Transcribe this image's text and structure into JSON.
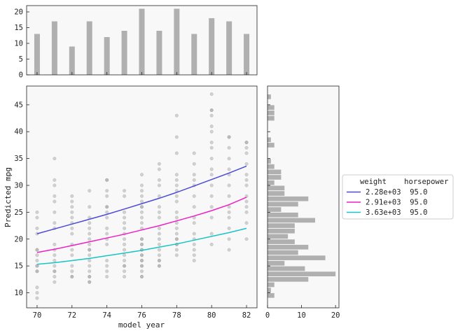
{
  "chart_data": [
    {
      "type": "bar",
      "x": [
        70,
        71,
        72,
        73,
        74,
        75,
        76,
        77,
        78,
        79,
        80,
        81,
        82
      ],
      "values": [
        13,
        17,
        9,
        17,
        12,
        14,
        21,
        14,
        21,
        13,
        18,
        17,
        13
      ],
      "xlim": [
        69.4,
        82.6
      ],
      "ylim": [
        0,
        22
      ],
      "yticks": [
        0,
        5,
        10,
        15,
        20
      ],
      "color": "#b0b0b0"
    },
    {
      "type": "scatter",
      "xlabel": "model year",
      "ylabel": "Predicted mpg",
      "xlim": [
        69.4,
        82.6
      ],
      "ylim": [
        7.2,
        48.5
      ],
      "xticks": [
        70,
        72,
        74,
        76,
        78,
        80,
        82
      ],
      "yticks": [
        10,
        15,
        20,
        25,
        30,
        35,
        40,
        45
      ],
      "grid": false,
      "point_color": "#a0a0a0",
      "points": [
        [
          70,
          9
        ],
        [
          70,
          10
        ],
        [
          70,
          11
        ],
        [
          70,
          14
        ],
        [
          70,
          14
        ],
        [
          70,
          15
        ],
        [
          70,
          15
        ],
        [
          70,
          16
        ],
        [
          70,
          17
        ],
        [
          70,
          18
        ],
        [
          70,
          18
        ],
        [
          70,
          21
        ],
        [
          70,
          22
        ],
        [
          70,
          24
        ],
        [
          70,
          25
        ],
        [
          71,
          12
        ],
        [
          71,
          13
        ],
        [
          71,
          14
        ],
        [
          71,
          14
        ],
        [
          71,
          15
        ],
        [
          71,
          16
        ],
        [
          71,
          17
        ],
        [
          71,
          18
        ],
        [
          71,
          19
        ],
        [
          71,
          22
        ],
        [
          71,
          23
        ],
        [
          71,
          25
        ],
        [
          71,
          27
        ],
        [
          71,
          28
        ],
        [
          71,
          30
        ],
        [
          71,
          31
        ],
        [
          71,
          35
        ],
        [
          72,
          13
        ],
        [
          72,
          13
        ],
        [
          72,
          14
        ],
        [
          72,
          15
        ],
        [
          72,
          17
        ],
        [
          72,
          18
        ],
        [
          72,
          19
        ],
        [
          72,
          21
        ],
        [
          72,
          22
        ],
        [
          72,
          23
        ],
        [
          72,
          24
        ],
        [
          72,
          25
        ],
        [
          72,
          26
        ],
        [
          72,
          27
        ],
        [
          72,
          28
        ],
        [
          73,
          12
        ],
        [
          73,
          12
        ],
        [
          73,
          13
        ],
        [
          73,
          13
        ],
        [
          73,
          14
        ],
        [
          73,
          15
        ],
        [
          73,
          16
        ],
        [
          73,
          17
        ],
        [
          73,
          18
        ],
        [
          73,
          18
        ],
        [
          73,
          19
        ],
        [
          73,
          20
        ],
        [
          73,
          21
        ],
        [
          73,
          22
        ],
        [
          73,
          23
        ],
        [
          73,
          24
        ],
        [
          73,
          26
        ],
        [
          73,
          29
        ],
        [
          74,
          13
        ],
        [
          74,
          14
        ],
        [
          74,
          15
        ],
        [
          74,
          16
        ],
        [
          74,
          19
        ],
        [
          74,
          20
        ],
        [
          74,
          21
        ],
        [
          74,
          22
        ],
        [
          74,
          24
        ],
        [
          74,
          25
        ],
        [
          74,
          26
        ],
        [
          74,
          26
        ],
        [
          74,
          28
        ],
        [
          74,
          29
        ],
        [
          74,
          31
        ],
        [
          74,
          31
        ],
        [
          75,
          13
        ],
        [
          75,
          14
        ],
        [
          75,
          15
        ],
        [
          75,
          15
        ],
        [
          75,
          16
        ],
        [
          75,
          17
        ],
        [
          75,
          18
        ],
        [
          75,
          19
        ],
        [
          75,
          20
        ],
        [
          75,
          21
        ],
        [
          75,
          22
        ],
        [
          75,
          23
        ],
        [
          75,
          24
        ],
        [
          75,
          25
        ],
        [
          75,
          28
        ],
        [
          75,
          29
        ],
        [
          76,
          13
        ],
        [
          76,
          13
        ],
        [
          76,
          14
        ],
        [
          76,
          15
        ],
        [
          76,
          15
        ],
        [
          76,
          16
        ],
        [
          76,
          16
        ],
        [
          76,
          17
        ],
        [
          76,
          17
        ],
        [
          76,
          18
        ],
        [
          76,
          18
        ],
        [
          76,
          19
        ],
        [
          76,
          19
        ],
        [
          76,
          20
        ],
        [
          76,
          20
        ],
        [
          76,
          22
        ],
        [
          76,
          23
        ],
        [
          76,
          24
        ],
        [
          76,
          25
        ],
        [
          76,
          26
        ],
        [
          76,
          26
        ],
        [
          76,
          27
        ],
        [
          76,
          28
        ],
        [
          76,
          29
        ],
        [
          76,
          30
        ],
        [
          76,
          32
        ],
        [
          77,
          15
        ],
        [
          77,
          15
        ],
        [
          77,
          16
        ],
        [
          77,
          16
        ],
        [
          77,
          17
        ],
        [
          77,
          18
        ],
        [
          77,
          19
        ],
        [
          77,
          20
        ],
        [
          77,
          21
        ],
        [
          77,
          22
        ],
        [
          77,
          24
        ],
        [
          77,
          25
        ],
        [
          77,
          26
        ],
        [
          77,
          28
        ],
        [
          77,
          30
        ],
        [
          77,
          31
        ],
        [
          77,
          33
        ],
        [
          77,
          34
        ],
        [
          78,
          17
        ],
        [
          78,
          18
        ],
        [
          78,
          19
        ],
        [
          78,
          19
        ],
        [
          78,
          20
        ],
        [
          78,
          20
        ],
        [
          78,
          21
        ],
        [
          78,
          22
        ],
        [
          78,
          23
        ],
        [
          78,
          24
        ],
        [
          78,
          25
        ],
        [
          78,
          27
        ],
        [
          78,
          28
        ],
        [
          78,
          29
        ],
        [
          78,
          30
        ],
        [
          78,
          31
        ],
        [
          78,
          32
        ],
        [
          78,
          36
        ],
        [
          78,
          39
        ],
        [
          78,
          43
        ],
        [
          79,
          16
        ],
        [
          79,
          17
        ],
        [
          79,
          18
        ],
        [
          79,
          19
        ],
        [
          79,
          20
        ],
        [
          79,
          21
        ],
        [
          79,
          23
        ],
        [
          79,
          24
        ],
        [
          79,
          26
        ],
        [
          79,
          28
        ],
        [
          79,
          30
        ],
        [
          79,
          31
        ],
        [
          79,
          32
        ],
        [
          79,
          34
        ],
        [
          79,
          36
        ],
        [
          80,
          19
        ],
        [
          80,
          21
        ],
        [
          80,
          24
        ],
        [
          80,
          26
        ],
        [
          80,
          28
        ],
        [
          80,
          30
        ],
        [
          80,
          32
        ],
        [
          80,
          33
        ],
        [
          80,
          35
        ],
        [
          80,
          37
        ],
        [
          80,
          38
        ],
        [
          80,
          40
        ],
        [
          80,
          41
        ],
        [
          80,
          43
        ],
        [
          80,
          44
        ],
        [
          80,
          44
        ],
        [
          80,
          47
        ],
        [
          81,
          18
        ],
        [
          81,
          20
        ],
        [
          81,
          22
        ],
        [
          81,
          24
        ],
        [
          81,
          25
        ],
        [
          81,
          26
        ],
        [
          81,
          28
        ],
        [
          81,
          30
        ],
        [
          81,
          32
        ],
        [
          81,
          33
        ],
        [
          81,
          35
        ],
        [
          81,
          37
        ],
        [
          81,
          39
        ],
        [
          81,
          39
        ],
        [
          82,
          20
        ],
        [
          82,
          23
        ],
        [
          82,
          25
        ],
        [
          82,
          26
        ],
        [
          82,
          27
        ],
        [
          82,
          28
        ],
        [
          82,
          30
        ],
        [
          82,
          31
        ],
        [
          82,
          32
        ],
        [
          82,
          34
        ],
        [
          82,
          36
        ],
        [
          82,
          37
        ],
        [
          82,
          38
        ],
        [
          82,
          38
        ]
      ],
      "legend_header": "   weight    horsepower",
      "legend_placement": "right",
      "series": [
        {
          "name": "2.28e+03  95.0",
          "color": "#4b4bd8",
          "x": [
            70,
            71,
            72,
            73,
            74,
            75,
            76,
            77,
            78,
            79,
            80,
            81,
            82
          ],
          "values": [
            21.0,
            21.9,
            22.8,
            23.7,
            24.6,
            25.6,
            26.6,
            27.6,
            28.7,
            29.9,
            31.1,
            32.3,
            33.6
          ]
        },
        {
          "name": "2.91e+03  95.0",
          "color": "#ec20c4",
          "x": [
            70,
            71,
            72,
            73,
            74,
            75,
            76,
            77,
            78,
            79,
            80,
            81,
            82
          ],
          "values": [
            17.5,
            18.1,
            18.8,
            19.5,
            20.2,
            20.9,
            21.7,
            22.5,
            23.4,
            24.3,
            25.3,
            26.4,
            27.8
          ]
        },
        {
          "name": "3.63e+03  95.0",
          "color": "#18c4c4",
          "x": [
            70,
            71,
            72,
            73,
            74,
            75,
            76,
            77,
            78,
            79,
            80,
            81,
            82
          ],
          "values": [
            15.3,
            15.6,
            16.0,
            16.4,
            16.9,
            17.4,
            17.9,
            18.5,
            19.1,
            19.8,
            20.5,
            21.2,
            22.0
          ]
        }
      ]
    },
    {
      "type": "bar",
      "orientation": "horizontal",
      "color": "#b0b0b0",
      "bins": [
        9,
        10,
        11,
        12,
        13,
        14,
        15,
        16,
        17,
        18,
        19,
        20,
        21,
        22,
        23,
        24,
        25,
        26,
        27,
        28,
        29,
        30,
        31,
        32,
        33,
        34,
        35,
        36,
        37,
        38,
        39,
        40,
        41,
        42,
        43,
        44,
        45,
        46,
        47
      ],
      "values": [
        2,
        1,
        2,
        12,
        20,
        11,
        5,
        17,
        9,
        12,
        8,
        6,
        8,
        8,
        14,
        9,
        4,
        9,
        12,
        5,
        5,
        2,
        4,
        4,
        2,
        1,
        0,
        0,
        2,
        1,
        0,
        0,
        0,
        2,
        2,
        2,
        0,
        1,
        0
      ],
      "xlim": [
        0,
        21
      ],
      "xticks": [
        0,
        10,
        20
      ]
    }
  ]
}
